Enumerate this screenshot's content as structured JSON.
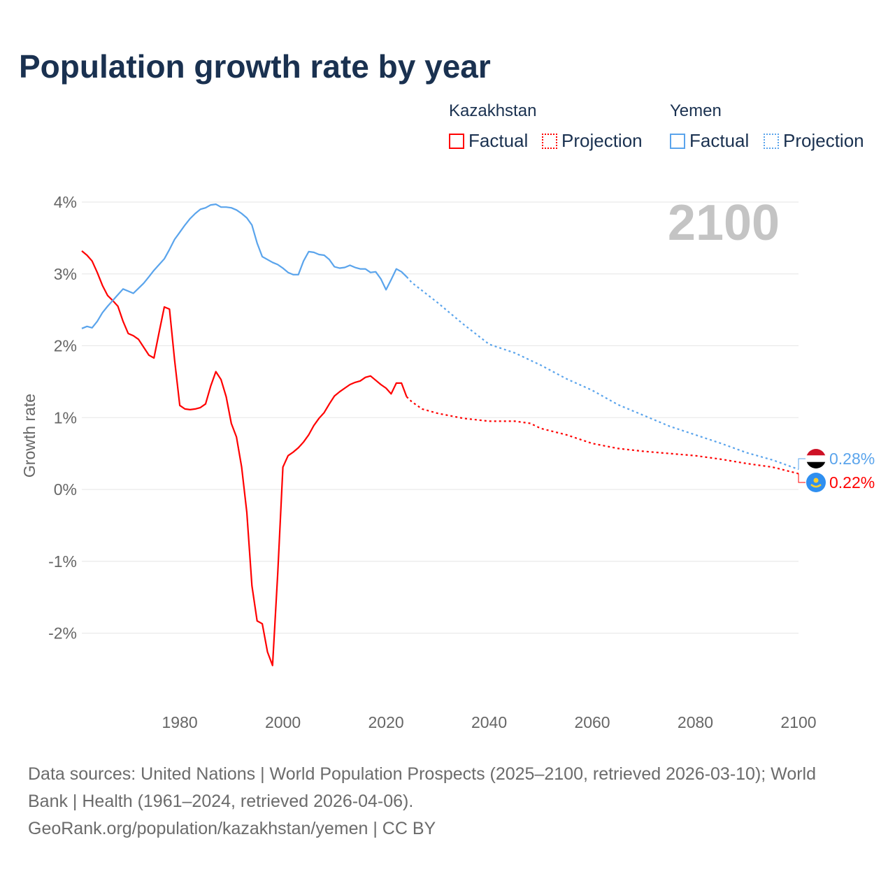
{
  "title": "Population growth rate by year",
  "legend": {
    "groups": [
      {
        "name": "Kazakhstan",
        "factual": "Factual",
        "projection": "Projection",
        "color": "#ff0000"
      },
      {
        "name": "Yemen",
        "factual": "Factual",
        "projection": "Projection",
        "color": "#5aa4ec"
      }
    ]
  },
  "footer": {
    "line1": "Data sources: United Nations | World Population Prospects (2025–2100, retrieved 2026-03-10); World",
    "line2": "Bank | Health (1961–2024, retrieved 2026-04-06).",
    "line3": "GeoRank.org/population/kazakhstan/yemen | CC BY"
  },
  "chart_data": {
    "type": "line",
    "title": "Population growth rate by year",
    "xlabel": "",
    "ylabel": "Growth rate",
    "year_label": "2100",
    "xlim": [
      1961,
      2100
    ],
    "ylim": [
      -2.9,
      4.3
    ],
    "xticks": [
      1980,
      2000,
      2020,
      2040,
      2060,
      2080,
      2100
    ],
    "yticks": [
      {
        "v": 4,
        "label": "4%"
      },
      {
        "v": 3,
        "label": "3%"
      },
      {
        "v": 2,
        "label": "2%"
      },
      {
        "v": 1,
        "label": "1%"
      },
      {
        "v": 0,
        "label": "0%"
      },
      {
        "v": -1,
        "label": "-1%"
      },
      {
        "v": -2,
        "label": "-2%"
      }
    ],
    "series": [
      {
        "name": "Kazakhstan",
        "color": "#ff0000",
        "end_label": "0.22%",
        "factual": {
          "start": 1961,
          "values": [
            3.32,
            3.26,
            3.18,
            3.02,
            2.84,
            2.7,
            2.63,
            2.55,
            2.34,
            2.17,
            2.14,
            2.09,
            1.98,
            1.87,
            1.83,
            2.19,
            2.54,
            2.51,
            1.8,
            1.17,
            1.12,
            1.11,
            1.12,
            1.14,
            1.19,
            1.44,
            1.64,
            1.53,
            1.29,
            0.92,
            0.73,
            0.31,
            -0.32,
            -1.34,
            -1.83,
            -1.87,
            -2.26,
            -2.45,
            -1.17,
            0.31,
            0.47,
            0.52,
            0.58,
            0.66,
            0.76,
            0.89,
            0.99,
            1.07,
            1.19,
            1.3,
            1.36,
            1.41,
            1.46,
            1.49,
            1.51,
            1.56,
            1.58,
            1.52,
            1.46,
            1.41,
            1.33,
            1.48,
            1.48,
            1.29
          ]
        },
        "projection": [
          [
            2024,
            1.29
          ],
          [
            2025,
            1.22
          ],
          [
            2027,
            1.12
          ],
          [
            2030,
            1.06
          ],
          [
            2035,
            0.99
          ],
          [
            2040,
            0.95
          ],
          [
            2045,
            0.95
          ],
          [
            2048,
            0.92
          ],
          [
            2050,
            0.85
          ],
          [
            2055,
            0.76
          ],
          [
            2060,
            0.64
          ],
          [
            2065,
            0.57
          ],
          [
            2070,
            0.53
          ],
          [
            2075,
            0.5
          ],
          [
            2080,
            0.47
          ],
          [
            2085,
            0.42
          ],
          [
            2090,
            0.36
          ],
          [
            2095,
            0.31
          ],
          [
            2100,
            0.22
          ]
        ]
      },
      {
        "name": "Yemen",
        "color": "#5aa4ec",
        "end_label": "0.28%",
        "factual": {
          "start": 1961,
          "values": [
            2.24,
            2.27,
            2.25,
            2.34,
            2.46,
            2.55,
            2.63,
            2.71,
            2.79,
            2.76,
            2.73,
            2.8,
            2.87,
            2.96,
            3.05,
            3.13,
            3.21,
            3.34,
            3.48,
            3.58,
            3.68,
            3.77,
            3.84,
            3.9,
            3.92,
            3.96,
            3.97,
            3.93,
            3.93,
            3.92,
            3.89,
            3.84,
            3.78,
            3.68,
            3.43,
            3.24,
            3.2,
            3.16,
            3.13,
            3.08,
            3.02,
            2.99,
            2.99,
            3.18,
            3.31,
            3.3,
            3.27,
            3.26,
            3.2,
            3.1,
            3.08,
            3.09,
            3.12,
            3.09,
            3.07,
            3.07,
            3.02,
            3.03,
            2.93,
            2.78,
            2.92,
            3.07,
            3.03,
            2.96
          ]
        },
        "projection": [
          [
            2024,
            2.96
          ],
          [
            2025,
            2.88
          ],
          [
            2030,
            2.6
          ],
          [
            2035,
            2.3
          ],
          [
            2040,
            2.02
          ],
          [
            2045,
            1.9
          ],
          [
            2050,
            1.73
          ],
          [
            2055,
            1.54
          ],
          [
            2060,
            1.38
          ],
          [
            2065,
            1.18
          ],
          [
            2070,
            1.03
          ],
          [
            2075,
            0.88
          ],
          [
            2080,
            0.76
          ],
          [
            2085,
            0.64
          ],
          [
            2090,
            0.51
          ],
          [
            2095,
            0.41
          ],
          [
            2100,
            0.28
          ]
        ]
      }
    ]
  }
}
